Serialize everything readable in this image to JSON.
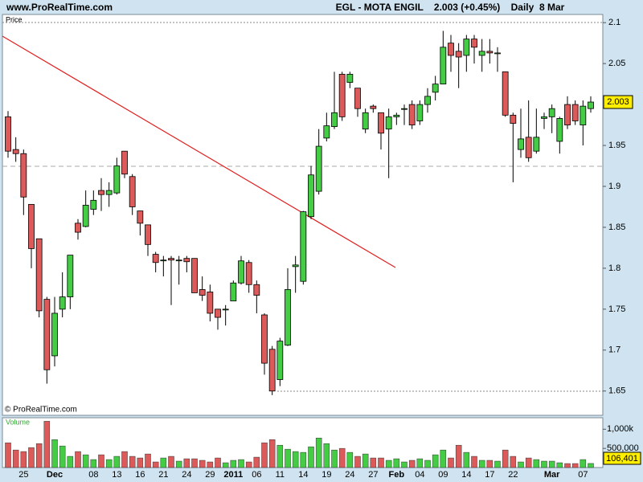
{
  "chart_data": [
    {
      "type": "candlestick",
      "title": "www.ProRealTime.com",
      "subtitle": "EGL - MOTA ENGIL    2.003 (+0.45%)    Daily  8 Mar",
      "ylabel": "Price",
      "source": "© ProRealTime.com",
      "categories": [
        null,
        null,
        "25",
        null,
        null,
        null,
        "Dec",
        null,
        null,
        null,
        null,
        "08",
        null,
        null,
        "13",
        null,
        null,
        "16",
        null,
        null,
        "21",
        null,
        null,
        "24",
        null,
        null,
        "29",
        null,
        null,
        "2011",
        null,
        null,
        "06",
        null,
        null,
        "11",
        null,
        null,
        "14",
        null,
        null,
        "19",
        null,
        null,
        "24",
        null,
        null,
        "27",
        null,
        null,
        "Feb",
        null,
        null,
        "04",
        null,
        null,
        "09",
        null,
        null,
        "14",
        null,
        null,
        "17",
        null,
        null,
        "22",
        null,
        null,
        null,
        null,
        "Mar",
        null,
        null,
        null,
        "07",
        null
      ],
      "open": [
        1.985,
        1.945,
        1.94,
        1.878,
        1.836,
        1.762,
        1.693,
        1.75,
        1.765,
        1.855,
        1.851,
        1.872,
        1.895,
        1.89,
        1.892,
        1.943,
        1.912,
        1.87,
        1.853,
        1.817,
        1.81,
        1.812,
        1.81,
        1.812,
        1.812,
        1.774,
        1.771,
        1.75,
        1.75,
        1.76,
        1.782,
        1.807,
        1.78,
        1.743,
        1.701,
        1.664,
        1.706,
        1.802,
        1.784,
        1.863,
        1.894,
        1.959,
        1.973,
        2.037,
        2.027,
        2.02,
        1.97,
        1.998,
        1.99,
        1.97,
        1.985,
        1.995,
        2.0,
        1.98,
        2.0,
        2.015,
        2.025,
        2.075,
        2.065,
        2.06,
        2.08,
        2.06,
        2.065,
        2.062,
        2.04,
        1.987,
        1.945,
        1.96,
        1.943,
        1.983,
        1.985,
        1.955,
        2.0,
        2.0,
        1.975,
        1.995
      ],
      "high": [
        1.992,
        1.96,
        1.945,
        1.878,
        1.836,
        1.765,
        1.765,
        1.795,
        1.816,
        1.86,
        1.895,
        1.895,
        1.91,
        1.905,
        1.935,
        1.943,
        1.915,
        1.87,
        1.853,
        1.82,
        1.815,
        1.815,
        1.815,
        1.815,
        1.812,
        1.79,
        1.78,
        1.75,
        1.755,
        1.785,
        1.815,
        1.81,
        1.785,
        1.745,
        1.705,
        1.715,
        1.8,
        1.815,
        1.87,
        1.925,
        1.97,
        1.99,
        2.04,
        2.04,
        2.04,
        2.02,
        1.995,
        2.0,
        1.99,
        1.995,
        1.99,
        2.0,
        2.005,
        2.005,
        2.02,
        2.035,
        2.09,
        2.085,
        2.075,
        2.085,
        2.085,
        2.08,
        2.08,
        2.07,
        2.04,
        1.99,
        1.995,
        2.005,
        1.995,
        1.99,
        2.0,
        1.985,
        2.01,
        2.005,
        2.005,
        2.01
      ],
      "low": [
        1.935,
        1.93,
        1.865,
        1.8,
        1.74,
        1.659,
        1.68,
        1.74,
        1.75,
        1.835,
        1.85,
        1.865,
        1.87,
        1.875,
        1.89,
        1.91,
        1.865,
        1.84,
        1.815,
        1.795,
        1.79,
        1.755,
        1.78,
        1.795,
        1.77,
        1.76,
        1.735,
        1.725,
        1.73,
        1.76,
        1.78,
        1.77,
        1.745,
        1.67,
        1.645,
        1.656,
        1.705,
        1.77,
        1.78,
        1.86,
        1.89,
        1.955,
        1.97,
        1.98,
        2.02,
        1.985,
        1.965,
        1.99,
        1.945,
        1.91,
        1.975,
        1.975,
        1.97,
        1.975,
        1.99,
        2.005,
        2.025,
        2.04,
        2.02,
        2.04,
        2.05,
        2.04,
        2.05,
        2.04,
        1.985,
        1.905,
        1.935,
        1.93,
        1.94,
        1.97,
        1.965,
        1.94,
        1.97,
        1.975,
        1.95,
        1.99
      ],
      "close": [
        1.943,
        1.94,
        1.887,
        1.824,
        1.748,
        1.676,
        1.745,
        1.765,
        1.816,
        1.844,
        1.877,
        1.883,
        1.89,
        1.895,
        1.925,
        1.915,
        1.875,
        1.855,
        1.829,
        1.807,
        1.81,
        1.81,
        1.81,
        1.808,
        1.77,
        1.767,
        1.745,
        1.74,
        1.75,
        1.782,
        1.809,
        1.78,
        1.767,
        1.684,
        1.65,
        1.711,
        1.774,
        1.804,
        1.869,
        1.914,
        1.949,
        1.974,
        1.99,
        1.985,
        2.037,
        1.995,
        1.99,
        1.995,
        1.965,
        1.985,
        1.987,
        1.995,
        1.975,
        2.0,
        2.01,
        2.025,
        2.07,
        2.06,
        2.058,
        2.08,
        2.07,
        2.065,
        2.063,
        2.063,
        1.987,
        1.977,
        1.958,
        1.935,
        1.96,
        1.985,
        1.995,
        1.983,
        1.975,
        1.98,
        1.998,
        2.003
      ],
      "last_label": "2.003",
      "up_color": "#44cc44",
      "down_color": "#dd5a5a",
      "ylim": [
        1.637,
        2.11
      ],
      "yticks": [
        1.65,
        1.7,
        1.75,
        1.8,
        1.85,
        1.9,
        1.95,
        2.05,
        2.1
      ]
    },
    {
      "type": "volume",
      "ylabel": "Volume",
      "values": [
        646000,
        458000,
        417000,
        521000,
        625000,
        1208000,
        729000,
        563000,
        292000,
        417000,
        333000,
        208000,
        333000,
        208000,
        292000,
        417000,
        292000,
        250000,
        354000,
        146000,
        250000,
        292000,
        167000,
        229000,
        229000,
        188000,
        146000,
        250000,
        125000,
        188000,
        208000,
        146000,
        271000,
        646000,
        729000,
        583000,
        479000,
        417000,
        396000,
        542000,
        771000,
        625000,
        458000,
        500000,
        396000,
        292000,
        354000,
        250000,
        250000,
        188000,
        229000,
        146000,
        188000,
        229000,
        188000,
        333000,
        458000,
        250000,
        583000,
        396000,
        292000,
        188000,
        188000,
        167000,
        458000,
        292000,
        146000,
        250000,
        208000,
        167000,
        167000,
        125000,
        104000,
        104000,
        208000,
        106401
      ],
      "last_label": "106,401",
      "ylim": [
        0,
        1300000
      ],
      "yticks": [
        {
          "value": 500000,
          "label": "500,000"
        },
        {
          "value": 1000000,
          "label": "1,000k"
        }
      ]
    }
  ]
}
